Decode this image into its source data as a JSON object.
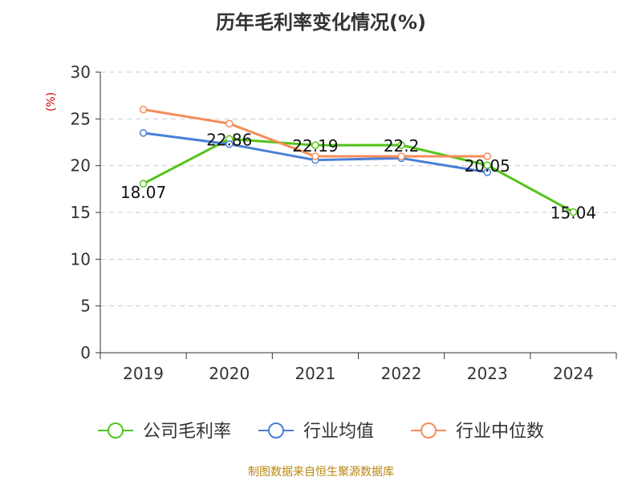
{
  "chart_data": {
    "type": "line",
    "title": "历年毛利率变化情况(%)",
    "ylabel": "(%)",
    "xlabel": "",
    "categories": [
      "2019",
      "2020",
      "2021",
      "2022",
      "2023",
      "2024"
    ],
    "ylim": [
      0,
      30
    ],
    "yticks": [
      "0",
      "5",
      "10",
      "15",
      "20",
      "25",
      "30"
    ],
    "grid": true,
    "legend_position": "bottom",
    "series": [
      {
        "name": "公司毛利率",
        "color": "#52c41a",
        "values": [
          18.07,
          22.86,
          22.19,
          22.2,
          20.05,
          15.04
        ],
        "labels": [
          "18.07",
          "22.86",
          "22.19",
          "22.2",
          "20.05",
          "15.04"
        ]
      },
      {
        "name": "行业均值",
        "color": "#4a7fd8",
        "values": [
          23.5,
          22.3,
          20.6,
          20.8,
          19.3,
          null
        ],
        "labels": []
      },
      {
        "name": "行业中位数",
        "color": "#f58d5a",
        "values": [
          26.0,
          24.5,
          21.0,
          21.0,
          21.0,
          null
        ],
        "labels": []
      }
    ]
  },
  "source": "制图数据来自恒生聚源数据库"
}
